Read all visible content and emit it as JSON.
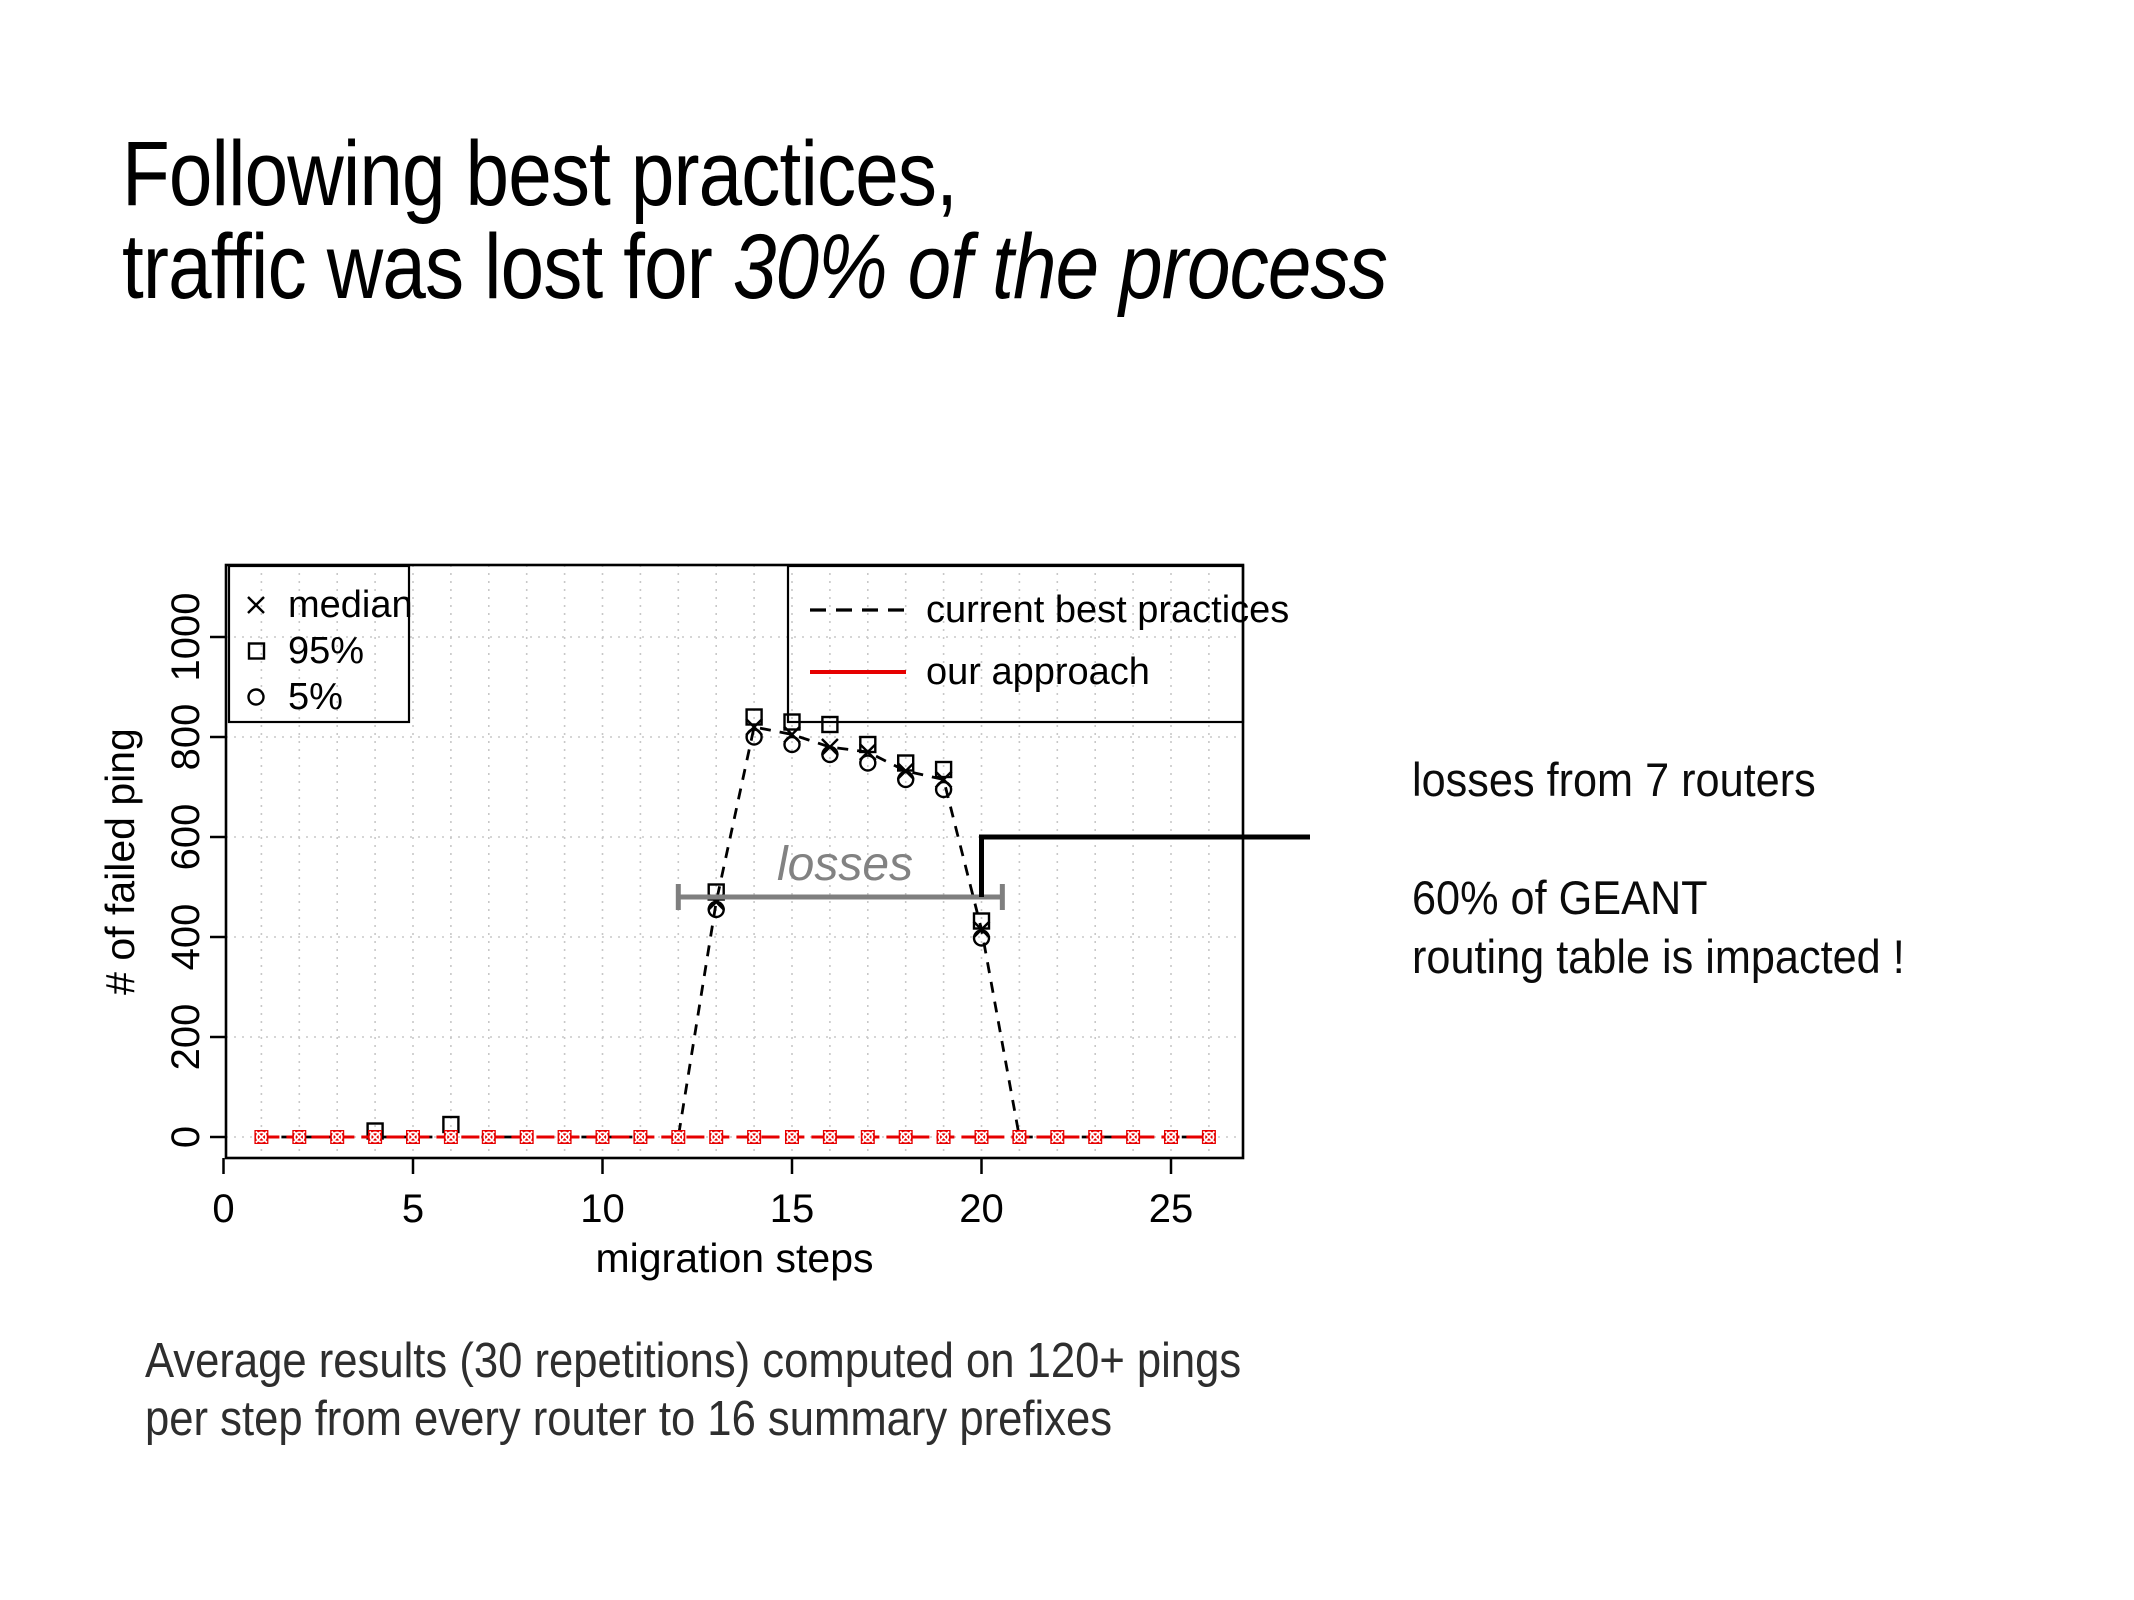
{
  "slide": {
    "title_line1": "Following best practices,",
    "title_line2_normal": "traffic was lost for ",
    "title_line2_italic": "30% of the process",
    "right_note_line1": "losses from 7 routers",
    "right_note_line2": "60% of GEANT",
    "right_note_line3": "routing table is impacted !",
    "caption_line1": "Average results (30 repetitions) computed on 120+ pings",
    "caption_line2": "per step from every router to 16 summary prefixes"
  },
  "chart_data": {
    "type": "scatter",
    "title": "",
    "xlabel": "migration steps",
    "ylabel": "# of failed ping",
    "xlim": [
      0,
      27
    ],
    "ylim": [
      -44,
      1144
    ],
    "x_ticks": [
      0,
      5,
      10,
      15,
      20,
      25
    ],
    "y_ticks": [
      0,
      200,
      400,
      600,
      800,
      1000
    ],
    "grid": true,
    "legend_position": [
      "top-left",
      "top-right"
    ],
    "steps": [
      1,
      2,
      3,
      4,
      5,
      6,
      7,
      8,
      9,
      10,
      11,
      12,
      13,
      14,
      15,
      16,
      17,
      18,
      19,
      20,
      21,
      22,
      23,
      24,
      25,
      26
    ],
    "series": [
      {
        "name": "current best practices — median",
        "symbol": "x",
        "color": "#000000",
        "line": "dashed",
        "values": [
          0,
          0,
          0,
          0,
          0,
          0,
          0,
          0,
          0,
          0,
          0,
          0,
          470,
          820,
          805,
          780,
          770,
          732,
          715,
          415,
          0,
          0,
          0,
          0,
          0,
          0
        ]
      },
      {
        "name": "current best practices — 95%",
        "symbol": "square",
        "color": "#000000",
        "line": "none",
        "values": [
          0,
          0,
          0,
          12,
          0,
          25,
          0,
          0,
          0,
          0,
          0,
          0,
          490,
          840,
          830,
          825,
          785,
          748,
          735,
          432,
          0,
          0,
          0,
          0,
          0,
          0
        ]
      },
      {
        "name": "current best practices — 5%",
        "symbol": "circle",
        "color": "#000000",
        "line": "none",
        "values": [
          0,
          0,
          0,
          0,
          0,
          0,
          0,
          0,
          0,
          0,
          0,
          0,
          455,
          800,
          785,
          765,
          748,
          715,
          695,
          398,
          0,
          0,
          0,
          0,
          0,
          0
        ]
      },
      {
        "name": "our approach",
        "symbol": "red-marker",
        "color": "#e60000",
        "line": "solid",
        "values": [
          0,
          0,
          0,
          0,
          0,
          0,
          0,
          0,
          0,
          0,
          0,
          0,
          0,
          0,
          0,
          0,
          0,
          0,
          0,
          0,
          0,
          0,
          0,
          0,
          0,
          0
        ]
      }
    ],
    "point_legend": [
      {
        "symbol": "x",
        "label": "median"
      },
      {
        "symbol": "square",
        "label": "95%"
      },
      {
        "symbol": "circle",
        "label": "5%"
      }
    ],
    "line_legend": [
      {
        "style": "dashed",
        "color": "#000000",
        "label": "current best practices"
      },
      {
        "style": "solid",
        "color": "#e60000",
        "label": "our approach"
      }
    ],
    "annotations": {
      "losses_label": "losses",
      "losses_color": "#828282",
      "bracket": {
        "from_step": 12,
        "to_step": 20.55,
        "y": 480
      },
      "callout": {
        "x_step": 20,
        "y_level": 600,
        "drop_to_y": 480
      }
    },
    "colors": {
      "approach_red": "#e60000",
      "bracket_gray": "#7f7f7f",
      "grid_gray": "#c8c8c8"
    }
  }
}
